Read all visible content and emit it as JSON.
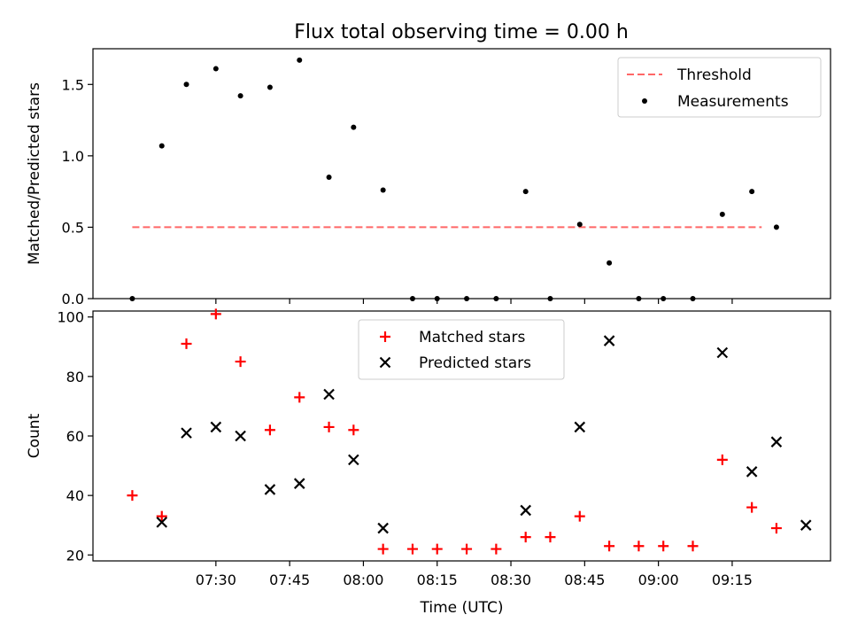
{
  "title": "Flux total observing time = 0.00 h",
  "colors": {
    "threshold": "#ff6666",
    "matched": "#ff0000",
    "predicted": "#000000",
    "measurement": "#000000"
  },
  "chart_data": [
    {
      "type": "scatter",
      "ylabel": "Matched/Predicted stars",
      "ylim": [
        0,
        1.75
      ],
      "yticks": [
        "0.0",
        "0.5",
        "1.0",
        "1.5"
      ],
      "xlim": [
        "07:05",
        "09:35"
      ],
      "legend": "top-right",
      "threshold": {
        "name": "Threshold",
        "value": 0.5,
        "x_range": [
          "07:13",
          "09:21"
        ]
      },
      "series": [
        {
          "name": "Measurements",
          "x": [
            "07:13",
            "07:19",
            "07:24",
            "07:30",
            "07:35",
            "07:41",
            "07:47",
            "07:53",
            "07:58",
            "08:04",
            "08:10",
            "08:15",
            "08:21",
            "08:27",
            "08:33",
            "08:38",
            "08:44",
            "08:50",
            "08:56",
            "09:01",
            "09:07",
            "09:13",
            "09:19",
            "09:24"
          ],
          "values": [
            0,
            1.07,
            1.5,
            1.61,
            1.42,
            1.48,
            1.67,
            0.85,
            1.2,
            0.76,
            0,
            0,
            0,
            0,
            0.75,
            0,
            0.52,
            0.25,
            0,
            0,
            0,
            0.59,
            0.75,
            0.5
          ]
        }
      ]
    },
    {
      "type": "scatter",
      "ylabel": "Count",
      "xlabel": "Time (UTC)",
      "ylim": [
        18,
        102
      ],
      "yticks": [
        "20",
        "40",
        "60",
        "80",
        "100"
      ],
      "xticks": [
        "07:30",
        "07:45",
        "08:00",
        "08:15",
        "08:30",
        "08:45",
        "09:00",
        "09:15"
      ],
      "xlim": [
        "07:05",
        "09:35"
      ],
      "legend": "top-center",
      "series": [
        {
          "name": "Matched stars",
          "x": [
            "07:13",
            "07:19",
            "07:24",
            "07:30",
            "07:35",
            "07:41",
            "07:47",
            "07:53",
            "07:58",
            "08:04",
            "08:10",
            "08:15",
            "08:21",
            "08:27",
            "08:33",
            "08:38",
            "08:44",
            "08:50",
            "08:56",
            "09:01",
            "09:07",
            "09:13",
            "09:19",
            "09:24"
          ],
          "values": [
            40,
            33,
            91,
            101,
            85,
            62,
            73,
            63,
            62,
            22,
            22,
            22,
            22,
            22,
            26,
            26,
            33,
            23,
            23,
            23,
            23,
            52,
            36,
            29
          ]
        },
        {
          "name": "Predicted stars",
          "x": [
            "07:19",
            "07:24",
            "07:30",
            "07:35",
            "07:41",
            "07:47",
            "07:53",
            "07:58",
            "08:04",
            "08:33",
            "08:44",
            "08:50",
            "09:13",
            "09:19",
            "09:24",
            "09:30"
          ],
          "values": [
            31,
            61,
            63,
            60,
            42,
            44,
            74,
            52,
            29,
            35,
            63,
            92,
            88,
            48,
            58,
            30
          ]
        }
      ]
    }
  ]
}
